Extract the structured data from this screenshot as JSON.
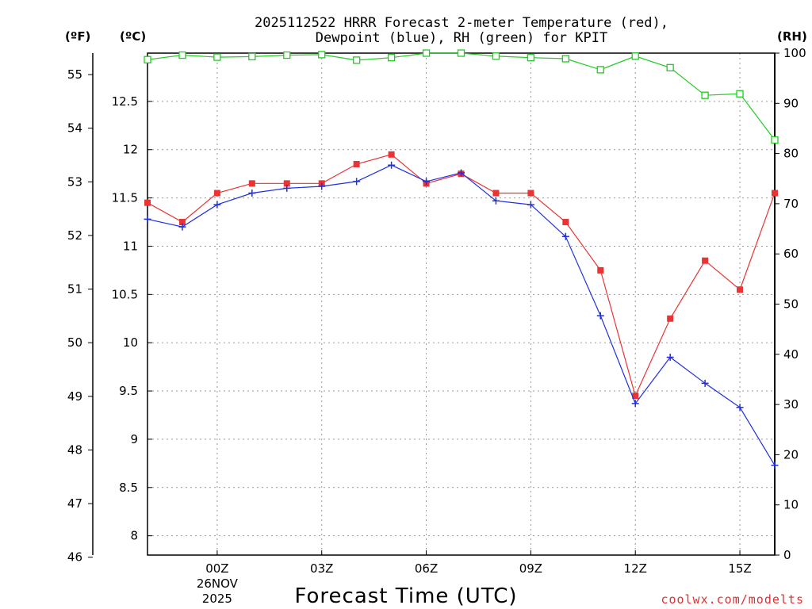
{
  "chart_data": {
    "type": "line",
    "title_lines": [
      "2025112522 HRRR Forecast 2-meter Temperature (red),",
      "Dewpoint (blue), RH (green) for KPIT"
    ],
    "xlabel": "Forecast Time (UTC)",
    "credit": "coolwx.com/modelts",
    "units": {
      "fahrenheit": "(ºF)",
      "celsius": "(ºC)",
      "rh": "(RH)"
    },
    "x_hours": [
      -2,
      -1,
      0,
      1,
      2,
      3,
      4,
      5,
      6,
      7,
      8,
      9,
      10,
      11,
      12,
      13,
      14,
      15,
      16
    ],
    "xlim": [
      -2,
      16
    ],
    "x_ticks": [
      {
        "hour": 0,
        "label": "00Z"
      },
      {
        "hour": 3,
        "label": "03Z"
      },
      {
        "hour": 6,
        "label": "06Z"
      },
      {
        "hour": 9,
        "label": "09Z"
      },
      {
        "hour": 12,
        "label": "12Z"
      },
      {
        "hour": 15,
        "label": "15Z"
      }
    ],
    "date_labels": {
      "hour": 0,
      "day": "26NOV",
      "year": "2025"
    },
    "celsius_lim": [
      7.8,
      13.0
    ],
    "celsius_ticks": [
      "8",
      "8.5",
      "9",
      "9.5",
      "10",
      "10.5",
      "11",
      "11.5",
      "12",
      "12.5"
    ],
    "fahrenheit_ticks": [
      "46",
      "47",
      "48",
      "49",
      "50",
      "51",
      "52",
      "53",
      "54",
      "55"
    ],
    "rh_lim": [
      0,
      100
    ],
    "rh_ticks": [
      "0",
      "10",
      "20",
      "30",
      "40",
      "50",
      "60",
      "70",
      "80",
      "90",
      "100"
    ],
    "series": [
      {
        "name": "Temperature",
        "color": "#e83434",
        "marker": "filled-square",
        "axis": "celsius",
        "values": [
          11.45,
          11.25,
          11.55,
          11.65,
          11.65,
          11.65,
          11.85,
          11.95,
          11.65,
          11.75,
          11.55,
          11.55,
          11.25,
          10.75,
          9.45,
          10.25,
          10.85,
          10.55,
          11.55
        ]
      },
      {
        "name": "Dewpoint",
        "color": "#2030e0",
        "marker": "plus",
        "axis": "celsius",
        "values": [
          11.28,
          11.2,
          11.43,
          11.55,
          11.6,
          11.62,
          11.67,
          11.84,
          11.67,
          11.76,
          11.47,
          11.43,
          11.1,
          10.28,
          9.37,
          9.85,
          9.58,
          9.33,
          8.73
        ]
      },
      {
        "name": "RH",
        "color": "#20cc20",
        "marker": "open-square",
        "axis": "rh",
        "values": [
          98.7,
          99.6,
          99.2,
          99.3,
          99.6,
          99.7,
          98.6,
          99.1,
          100.0,
          100.0,
          99.4,
          99.1,
          98.9,
          96.7,
          99.4,
          97.1,
          91.6,
          91.9,
          82.7
        ]
      }
    ]
  }
}
